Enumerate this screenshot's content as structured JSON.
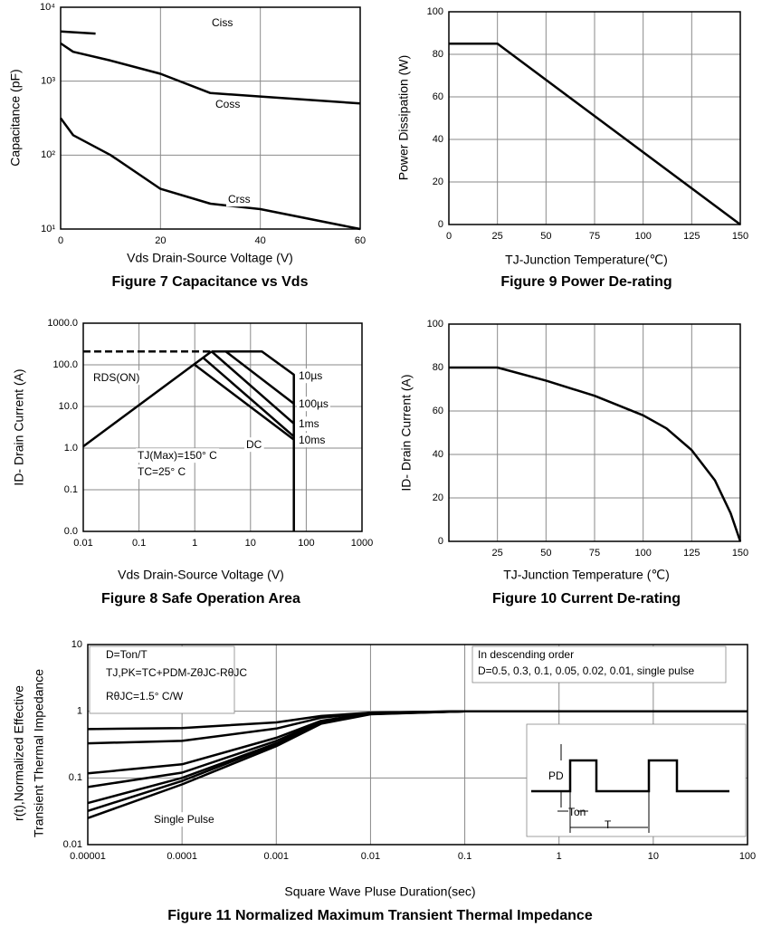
{
  "chart_data": [
    {
      "type": "line",
      "title": "Figure 7 Capacitance vs Vds",
      "xlabel": "Vds Drain-Source Voltage (V)",
      "ylabel": "Capacitance (pF)",
      "xscale": "linear",
      "yscale": "log",
      "grid": true,
      "xlim": [
        0,
        60
      ],
      "xticks": [
        0,
        20,
        40,
        60
      ],
      "ylim": [
        10,
        10000
      ],
      "yticks": [
        {
          "value": 10,
          "label": "10¹"
        },
        {
          "value": 100,
          "label": "10²"
        },
        {
          "value": 1000,
          "label": "10³"
        },
        {
          "value": 10000,
          "label": "10⁴"
        }
      ],
      "series": [
        {
          "name": "Ciss",
          "color": "#000000",
          "x": [
            0,
            7
          ],
          "values": [
            4700,
            4400
          ]
        },
        {
          "name": "Coss",
          "color": "#000000",
          "x": [
            0,
            2.5,
            10,
            20,
            30,
            40,
            60
          ],
          "values": [
            3250,
            2500,
            1900,
            1260,
            690,
            620,
            500
          ]
        },
        {
          "name": "Crss",
          "color": "#000000",
          "x": [
            0,
            2.5,
            10,
            20,
            30,
            40,
            60
          ],
          "values": [
            316,
            186,
            100,
            35,
            22,
            18.6,
            10
          ]
        }
      ]
    },
    {
      "type": "line",
      "title": "Figure 9 Power De-rating",
      "xlabel": "TJ-Junction Temperature(℃)",
      "ylabel": "Power Dissipation (W)",
      "xscale": "linear",
      "yscale": "linear",
      "grid": true,
      "xlim": [
        0,
        150
      ],
      "xticks": [
        0,
        25,
        50,
        75,
        100,
        125,
        150
      ],
      "ylim": [
        0,
        100
      ],
      "yticks": [
        0,
        20,
        40,
        60,
        80,
        100
      ],
      "series": [
        {
          "color": "#000000",
          "x": [
            0,
            25,
            150
          ],
          "values": [
            85,
            85,
            0
          ]
        }
      ]
    },
    {
      "type": "line",
      "title": "Figure 8 Safe Operation Area",
      "xlabel": "Vds Drain-Source Voltage (V)",
      "ylabel": "ID- Drain Current (A)",
      "xscale": "log",
      "yscale": "log",
      "grid": true,
      "xlim": [
        0.01,
        1000
      ],
      "xticks": [
        0.01,
        0.1,
        1,
        10,
        100,
        1000
      ],
      "ylim": [
        0.01,
        1000
      ],
      "yticks": [
        {
          "value": 0.01,
          "label": "0.0"
        },
        {
          "value": 0.1,
          "label": "0.1"
        },
        {
          "value": 1,
          "label": "1.0"
        },
        {
          "value": 10,
          "label": "10.0"
        },
        {
          "value": 100,
          "label": "100.0"
        },
        {
          "value": 1000,
          "label": "1000.0"
        }
      ],
      "series": [
        {
          "name": "RDS(ON)",
          "color": "#000000",
          "x": [
            0.01,
            2
          ],
          "values": [
            1.1,
            210
          ]
        },
        {
          "color": "#000000",
          "dash": true,
          "x": [
            0.01,
            2
          ],
          "values": [
            210,
            210
          ]
        },
        {
          "name": "10µs",
          "color": "#000000",
          "x": [
            2,
            16,
            60,
            60
          ],
          "values": [
            210,
            210,
            58,
            0.01
          ]
        },
        {
          "name": "100µs",
          "color": "#000000",
          "x": [
            3.6,
            60
          ],
          "values": [
            210,
            11.7
          ]
        },
        {
          "name": "1ms",
          "color": "#000000",
          "x": [
            2,
            60
          ],
          "values": [
            210,
            3.9
          ]
        },
        {
          "name": "10ms",
          "color": "#000000",
          "x": [
            1.4,
            60
          ],
          "values": [
            150,
            1.9
          ]
        },
        {
          "name": "DC",
          "color": "#000000",
          "x": [
            1,
            60
          ],
          "values": [
            100,
            1.6
          ]
        }
      ],
      "annotations": [
        "TJ(Max)=150° C",
        "TC=25° C"
      ]
    },
    {
      "type": "line",
      "title": "Figure 10 Current De-rating",
      "xlabel": "TJ-Junction Temperature (℃)",
      "ylabel": "ID- Drain Current (A)",
      "xscale": "linear",
      "yscale": "linear",
      "grid": true,
      "xlim": [
        0,
        150
      ],
      "xticks": [
        25,
        50,
        75,
        100,
        125,
        150
      ],
      "ylim": [
        0,
        100
      ],
      "yticks": [
        0,
        20,
        40,
        60,
        80,
        100
      ],
      "series": [
        {
          "color": "#000000",
          "x": [
            0,
            25,
            50,
            75,
            100,
            112,
            125,
            137,
            145,
            150
          ],
          "values": [
            80,
            80,
            74,
            67,
            58,
            52,
            42,
            28,
            13,
            0
          ]
        }
      ]
    },
    {
      "type": "line",
      "title": "Figure 11 Normalized Maximum Transient Thermal Impedance",
      "xlabel": "Square Wave Pluse Duration(sec)",
      "ylabel": [
        "r(t),Normalized Effective",
        "Transient Thermal Impedance"
      ],
      "xscale": "log",
      "yscale": "log",
      "grid": true,
      "xlim": [
        1e-05,
        100
      ],
      "xticks": [
        1e-05,
        0.0001,
        0.001,
        0.01,
        0.1,
        1,
        10,
        100
      ],
      "ylim": [
        0.01,
        10
      ],
      "yticks": [
        0.01,
        0.1,
        1,
        10
      ],
      "series": [
        {
          "color": "#000000",
          "x": [
            1e-05,
            0.0001,
            0.001,
            0.003,
            0.01,
            0.1,
            1,
            10,
            100
          ],
          "values": [
            0.54,
            0.56,
            0.68,
            0.85,
            0.95,
            1,
            1,
            1,
            1
          ]
        },
        {
          "color": "#000000",
          "x": [
            1e-05,
            0.0001,
            0.001,
            0.003,
            0.01,
            0.1,
            1,
            10,
            100
          ],
          "values": [
            0.33,
            0.36,
            0.55,
            0.8,
            0.95,
            1,
            1,
            1,
            1
          ]
        },
        {
          "color": "#000000",
          "x": [
            1e-05,
            0.0001,
            0.001,
            0.003,
            0.01,
            0.1,
            1,
            10,
            100
          ],
          "values": [
            0.117,
            0.16,
            0.4,
            0.72,
            0.93,
            1,
            1,
            1,
            1
          ]
        },
        {
          "color": "#000000",
          "x": [
            1e-05,
            0.0001,
            0.001,
            0.003,
            0.01,
            0.1,
            1,
            10,
            100
          ],
          "values": [
            0.073,
            0.12,
            0.36,
            0.7,
            0.92,
            1,
            1,
            1,
            1
          ]
        },
        {
          "color": "#000000",
          "x": [
            1e-05,
            0.0001,
            0.001,
            0.003,
            0.01,
            0.1,
            1,
            10,
            100
          ],
          "values": [
            0.042,
            0.1,
            0.33,
            0.68,
            0.92,
            1,
            1,
            1,
            1
          ]
        },
        {
          "color": "#000000",
          "x": [
            1e-05,
            0.0001,
            0.001,
            0.003,
            0.01,
            0.1,
            1,
            10,
            100
          ],
          "values": [
            0.032,
            0.09,
            0.32,
            0.67,
            0.91,
            1,
            1,
            1,
            1
          ]
        },
        {
          "color": "#000000",
          "x": [
            1e-05,
            0.0001,
            0.001,
            0.003,
            0.01,
            0.1,
            1,
            10,
            100
          ],
          "values": [
            0.025,
            0.08,
            0.3,
            0.65,
            0.9,
            1,
            1,
            1,
            1
          ]
        }
      ],
      "annotations": [
        "D=Ton/T",
        "TJ,PK=TC+PDM-ZθJC-RθJC",
        "RθJC=1.5° C/W",
        "In descending order",
        "D=0.5, 0.3, 0.1, 0.05, 0.02, 0.01, single pulse",
        "Single Pulse"
      ],
      "inset_labels": [
        "PD",
        "Ton",
        "T"
      ]
    }
  ]
}
